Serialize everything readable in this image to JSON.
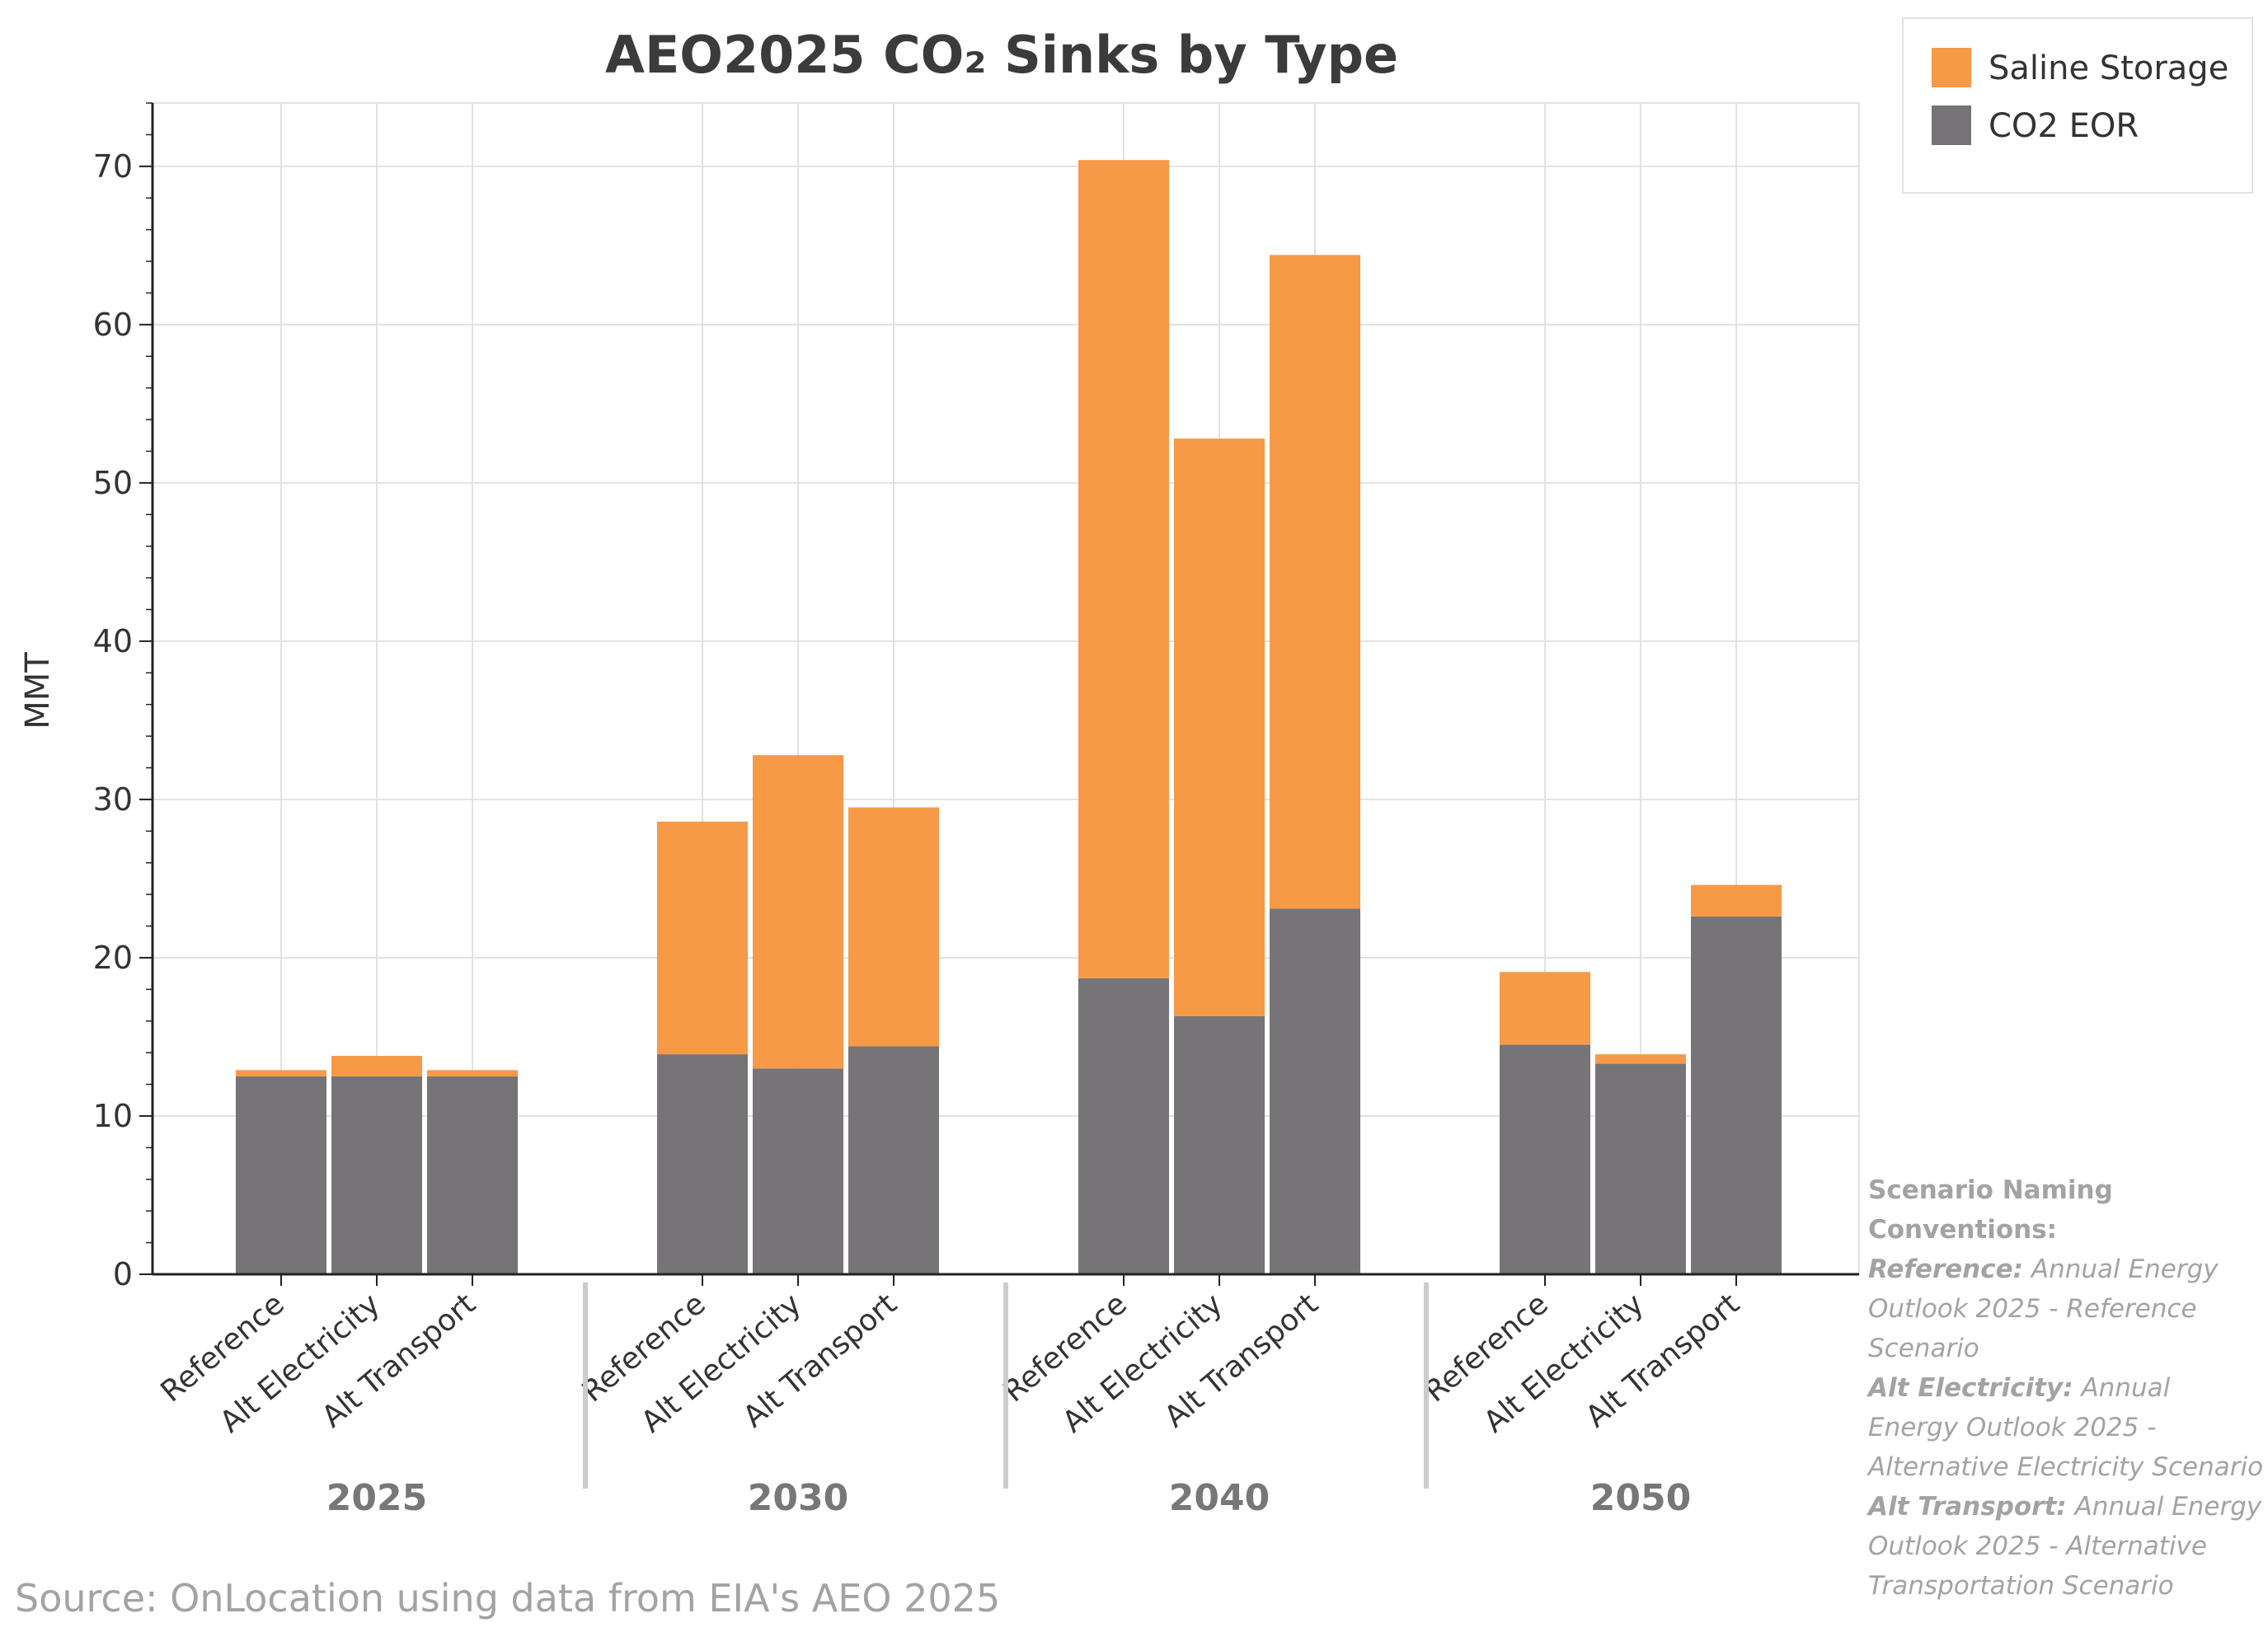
{
  "chart_data": {
    "type": "bar",
    "stacked": true,
    "title": "AEO2025 CO₂ Sinks by Type",
    "xlabel": "",
    "ylabel": "MMT",
    "ylim": [
      0,
      74
    ],
    "yticks": [
      0,
      10,
      20,
      30,
      40,
      50,
      60,
      70
    ],
    "grid": true,
    "legend_position": "top-right",
    "groups": [
      "2025",
      "2030",
      "2040",
      "2050"
    ],
    "scenarios": [
      "Reference",
      "Alt Electricity",
      "Alt Transport"
    ],
    "series": [
      {
        "name": "CO2 EOR",
        "color": "#767476",
        "values": [
          [
            12.5,
            12.5,
            12.5
          ],
          [
            13.9,
            13.0,
            14.4
          ],
          [
            18.7,
            16.3,
            23.1
          ],
          [
            14.5,
            13.3,
            22.6
          ]
        ]
      },
      {
        "name": "Saline Storage",
        "color": "#f69a48",
        "values": [
          [
            0.4,
            1.3,
            0.4
          ],
          [
            14.7,
            19.8,
            15.1
          ],
          [
            51.7,
            36.5,
            41.3
          ],
          [
            4.6,
            0.6,
            2.0
          ]
        ]
      }
    ],
    "legend": [
      "Saline Storage",
      "CO2 EOR"
    ]
  },
  "footer": {
    "source": "Source: OnLocation using data from EIA's AEO 2025"
  },
  "notes": {
    "heading": "Scenario Naming Conventions:",
    "items": [
      {
        "term": "Reference:",
        "desc": "Annual Energy Outlook 2025 - Reference Scenario"
      },
      {
        "term": "Alt Electricity:",
        "desc": "Annual Energy Outlook 2025 - Alternative Electricity Scenario"
      },
      {
        "term": "Alt Transport:",
        "desc": "Annual Energy Outlook 2025 - Alternative Transportation Scenario"
      }
    ]
  }
}
